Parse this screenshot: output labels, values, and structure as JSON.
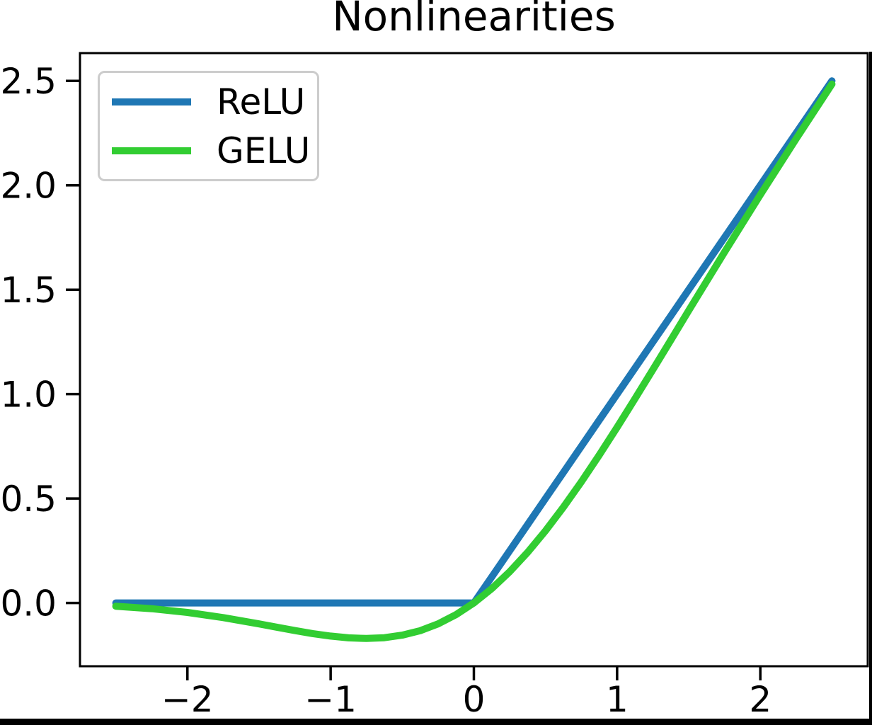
{
  "figure": {
    "background": "#ffffff",
    "frame_color": "#000000",
    "text_color": "#000000",
    "legend_border_color": "#cccccc"
  },
  "chart_data": {
    "type": "line",
    "title": "Nonlinearities",
    "xlabel": "",
    "ylabel": "",
    "grid": false,
    "legend_position": "upper-left",
    "xlim": [
      -2.75,
      2.75
    ],
    "ylim": [
      -0.303,
      2.633
    ],
    "xticks": {
      "values": [
        -2,
        -1,
        0,
        1,
        2
      ],
      "labels": [
        "−2",
        "−1",
        "0",
        "1",
        "2"
      ]
    },
    "yticks": {
      "values": [
        0.0,
        0.5,
        1.0,
        1.5,
        2.0,
        2.5
      ],
      "labels": [
        "0.0",
        "0.5",
        "1.0",
        "1.5",
        "2.0",
        "2.5"
      ]
    },
    "line_width": 10,
    "x": [
      -2.5,
      -2.25,
      -2.0,
      -1.75,
      -1.5,
      -1.375,
      -1.25,
      -1.125,
      -1.0,
      -0.875,
      -0.75,
      -0.625,
      -0.5,
      -0.375,
      -0.25,
      -0.125,
      0.0,
      0.125,
      0.25,
      0.375,
      0.5,
      0.625,
      0.75,
      0.875,
      1.0,
      1.125,
      1.25,
      1.375,
      1.5,
      1.75,
      2.0,
      2.25,
      2.5
    ],
    "series": [
      {
        "name": "ReLU",
        "color": "#1f77b4",
        "values": [
          0.0,
          0.0,
          0.0,
          0.0,
          0.0,
          0.0,
          0.0,
          0.0,
          0.0,
          0.0,
          0.0,
          0.0,
          0.0,
          0.0,
          0.0,
          0.0,
          0.0,
          0.125,
          0.25,
          0.375,
          0.5,
          0.625,
          0.75,
          0.875,
          1.0,
          1.125,
          1.25,
          1.375,
          1.5,
          1.75,
          2.0,
          2.25,
          2.5
        ]
      },
      {
        "name": "GELU",
        "color": "#32cd32",
        "values": [
          -0.0155,
          -0.0275,
          -0.0455,
          -0.0701,
          -0.1002,
          -0.1163,
          -0.1321,
          -0.1466,
          -0.1587,
          -0.167,
          -0.17,
          -0.1663,
          -0.1543,
          -0.1327,
          -0.1003,
          -0.0563,
          0.0,
          0.0687,
          0.1497,
          0.2423,
          0.3457,
          0.4588,
          0.58,
          0.7081,
          0.8413,
          0.9784,
          1.1179,
          1.2587,
          1.3998,
          1.6799,
          1.9545,
          2.2225,
          2.4845
        ]
      }
    ]
  }
}
